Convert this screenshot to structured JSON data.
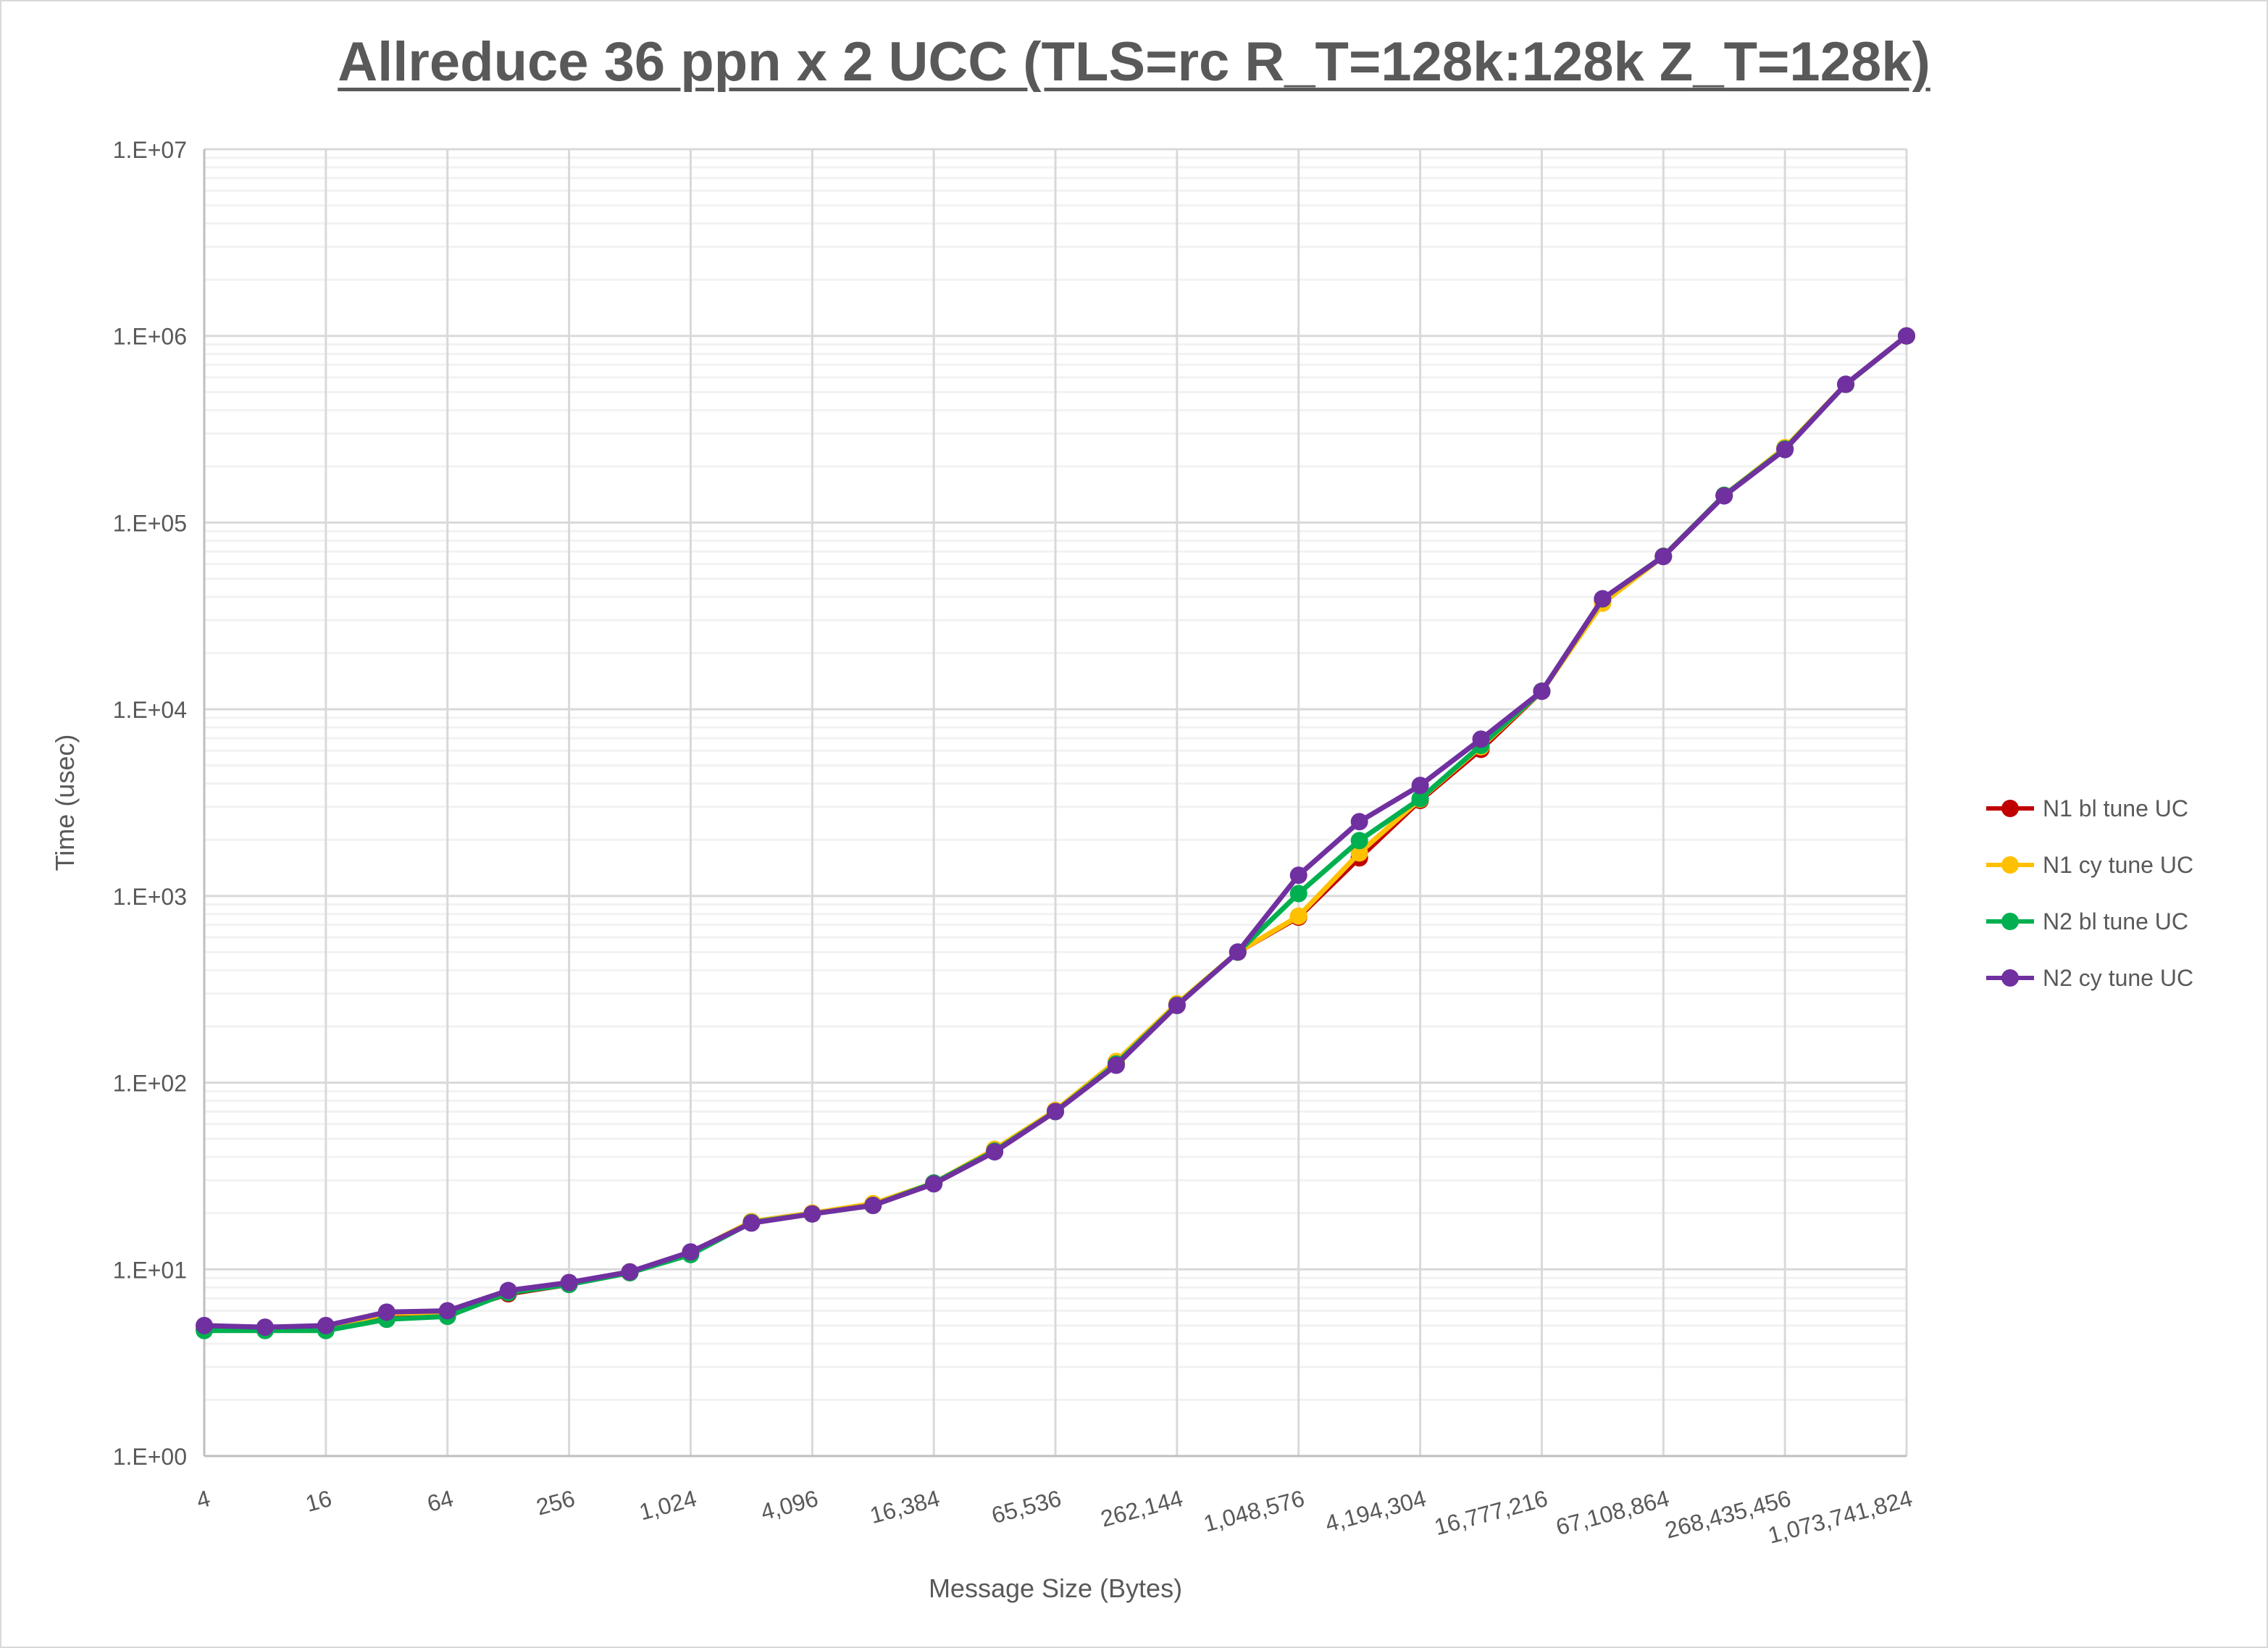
{
  "chart_data": {
    "type": "line",
    "title": "Allreduce 36 ppn x 2 UCC (TLS=rc R_T=128k:128k Z_T=128k)",
    "xlabel": "Message Size (Bytes)",
    "ylabel": "Time (usec)",
    "y_scale": "log",
    "ylim": [
      1,
      10000000
    ],
    "y_ticks": [
      "1.E+00",
      "1.E+01",
      "1.E+02",
      "1.E+03",
      "1.E+04",
      "1.E+05",
      "1.E+06",
      "1.E+07"
    ],
    "x_scale": "log2",
    "x_tick_labels": [
      "4",
      "16",
      "64",
      "256",
      "1,024",
      "4,096",
      "16,384",
      "65,536",
      "262,144",
      "1,048,576",
      "4,194,304",
      "16,777,216",
      "67,108,864",
      "268,435,456",
      "1,073,741,824"
    ],
    "grid": true,
    "legend": "right",
    "x": [
      4,
      8,
      16,
      32,
      64,
      128,
      256,
      512,
      1024,
      2048,
      4096,
      8192,
      16384,
      32768,
      65536,
      131072,
      262144,
      524288,
      1048576,
      2097152,
      4194304,
      8388608,
      16777216,
      33554432,
      67108864,
      134217728,
      268435456,
      536870912,
      1073741824
    ],
    "series": [
      {
        "name": "N1 bl tune UC",
        "color": "#c00000",
        "values": [
          4.8,
          4.8,
          4.8,
          5.6,
          5.8,
          7.4,
          8.3,
          9.6,
          12.2,
          18,
          20,
          22,
          29,
          43,
          71,
          127,
          262,
          500,
          770,
          1600,
          3250,
          6100,
          12500,
          38000,
          66000,
          140000,
          250000,
          550000,
          1000000
        ]
      },
      {
        "name": "N1 cy tune UC",
        "color": "#ffc000",
        "values": [
          4.9,
          4.8,
          4.9,
          5.8,
          5.9,
          7.6,
          8.4,
          9.7,
          12.3,
          18,
          20,
          22.5,
          29,
          44,
          71,
          130,
          265,
          500,
          780,
          1700,
          3300,
          6300,
          12500,
          37000,
          66000,
          140000,
          252000,
          550000,
          1000000
        ]
      },
      {
        "name": "N2 bl tune UC",
        "color": "#00b050",
        "values": [
          4.7,
          4.7,
          4.7,
          5.4,
          5.6,
          7.5,
          8.3,
          9.6,
          12,
          17.8,
          19.8,
          22,
          29,
          43,
          70,
          126,
          260,
          500,
          1030,
          1980,
          3320,
          6400,
          12500,
          39000,
          66000,
          140000,
          248000,
          550000,
          1000000
        ]
      },
      {
        "name": "N2 cy tune UC",
        "color": "#7030a0",
        "values": [
          5.0,
          4.9,
          5.0,
          5.9,
          6.0,
          7.7,
          8.5,
          9.7,
          12.4,
          17.7,
          19.8,
          22,
          28.7,
          42.6,
          70,
          124,
          259,
          501,
          1291,
          2500,
          3910,
          6920,
          12480,
          39100,
          65800,
          139000,
          246000,
          551000,
          1000000
        ]
      }
    ]
  }
}
